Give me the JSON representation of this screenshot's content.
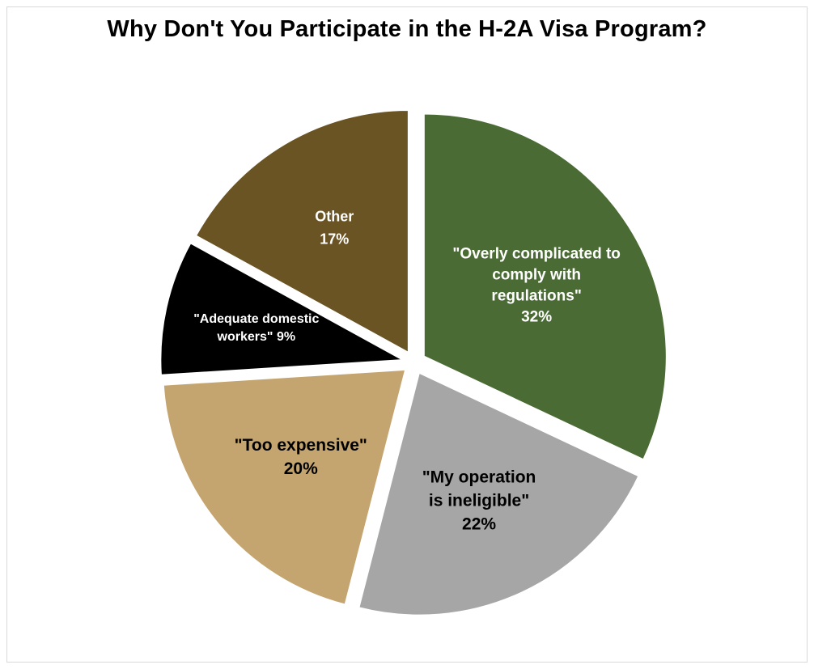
{
  "chart_data": {
    "type": "pie",
    "title": "Why Don't You Participate in the H-2A Visa Program?",
    "slices": [
      {
        "label_lines": [
          "\"Overly complicated to",
          "comply with",
          "regulations\"",
          "32%"
        ],
        "value": 32,
        "color": "#4a6b33",
        "text_color": "#ffffff"
      },
      {
        "label_lines": [
          "\"My operation",
          "is ineligible\"",
          "22%"
        ],
        "value": 22,
        "color": "#a6a6a6",
        "text_color": "#000000"
      },
      {
        "label_lines": [
          "\"Too expensive\"",
          "20%"
        ],
        "value": 20,
        "color": "#c4a46f",
        "text_color": "#000000"
      },
      {
        "label_lines": [
          "\"Adequate domestic",
          "workers\" 9%"
        ],
        "value": 9,
        "color": "#000000",
        "text_color": "#ffffff"
      },
      {
        "label_lines": [
          "Other",
          "17%"
        ],
        "value": 17,
        "color": "#6b5424",
        "text_color": "#ffffff"
      }
    ]
  }
}
